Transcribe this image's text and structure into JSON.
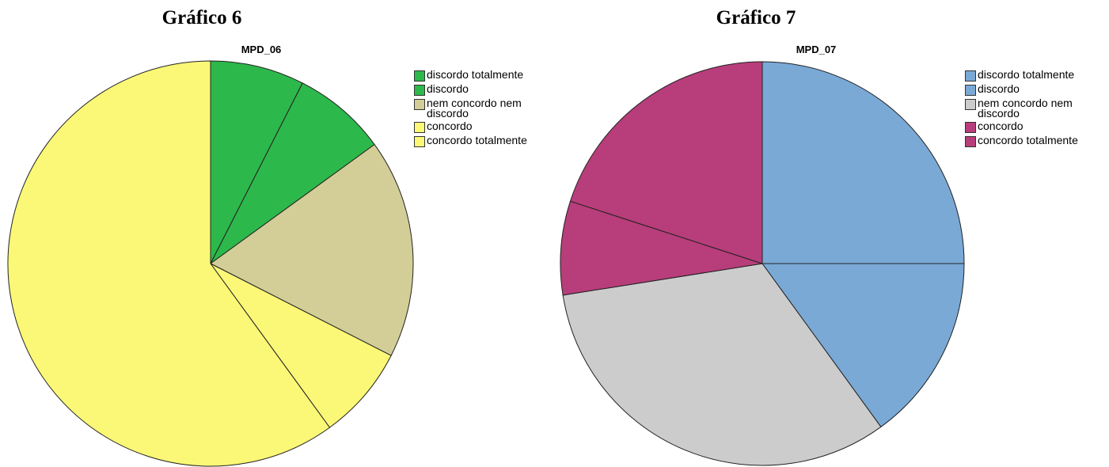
{
  "chart_data": [
    {
      "type": "pie",
      "title": "Gráfico 6",
      "subtitle": "MPD_06",
      "categories": [
        "discordo totalmente",
        "discordo",
        "nem concordo nem discordo",
        "concordo",
        "concordo totalmente"
      ],
      "values": [
        7.5,
        7.5,
        17.5,
        7.5,
        60
      ],
      "colors": [
        "#2db84b",
        "#2db84b",
        "#d3ce97",
        "#fbf877",
        "#fbf877"
      ]
    },
    {
      "type": "pie",
      "title": "Gráfico 7",
      "subtitle": "MPD_07",
      "categories": [
        "discordo totalmente",
        "discordo",
        "nem concordo nem discordo",
        "concordo",
        "concordo totalmente"
      ],
      "values": [
        25,
        15,
        32.5,
        7.5,
        20
      ],
      "colors": [
        "#7aa9d6",
        "#7aa9d6",
        "#cccccc",
        "#b83d7b",
        "#b83d7b"
      ]
    }
  ]
}
